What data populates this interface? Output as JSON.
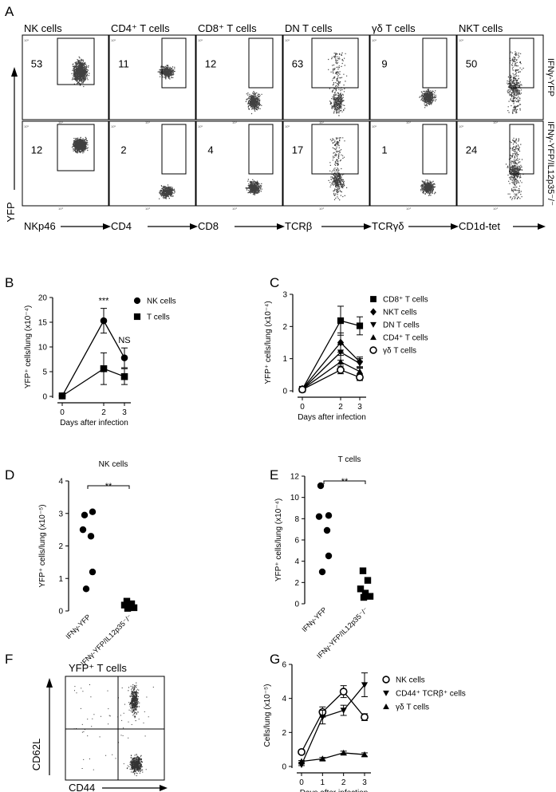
{
  "panel_letters": [
    "A",
    "B",
    "C",
    "D",
    "E",
    "F",
    "G"
  ],
  "panel_a": {
    "y_axis_label": "YFP",
    "row_labels": [
      "IFNγ-YFP",
      "IFNγ-YFP/IL12p35⁻/⁻"
    ],
    "columns": [
      {
        "title": "NK cells",
        "x_label": "NKp46",
        "gate_pct": [
          53,
          12
        ]
      },
      {
        "title": "CD4⁺ T cells",
        "x_label": "CD4",
        "gate_pct": [
          11,
          2
        ]
      },
      {
        "title": "CD8⁺ T cells",
        "x_label": "CD8",
        "gate_pct": [
          12,
          4
        ]
      },
      {
        "title": "DN T cells",
        "x_label": "TCRβ",
        "gate_pct": [
          63,
          17
        ]
      },
      {
        "title": "γδ T cells",
        "x_label": "TCRγδ",
        "gate_pct": [
          9,
          1
        ]
      },
      {
        "title": "NKT cells",
        "x_label": "CD1d-tet",
        "gate_pct": [
          50,
          24
        ]
      }
    ]
  },
  "panel_f": {
    "title": "YFP⁺ T cells",
    "x_label": "CD44",
    "y_label": "CD62L"
  },
  "chart_data": [
    {
      "id": "B",
      "type": "line",
      "xlabel": "Days after infection",
      "ylabel": "YFP⁺ cells/lung (x10⁻⁴)",
      "x": [
        0,
        2,
        3
      ],
      "xlim": [
        0,
        3
      ],
      "ylim": [
        0,
        20
      ],
      "yticks": [
        0,
        5,
        10,
        15,
        20
      ],
      "series": [
        {
          "name": "NK cells",
          "marker": "circle",
          "values": [
            0.1,
            15.3,
            7.8
          ],
          "err": [
            0.1,
            2.5,
            2.0
          ]
        },
        {
          "name": "T cells",
          "marker": "square",
          "values": [
            0.1,
            5.6,
            4.0
          ],
          "err": [
            0.1,
            3.2,
            1.6
          ]
        }
      ],
      "annotations": [
        {
          "x": 2,
          "text": "***"
        },
        {
          "x": 3,
          "text": "NS"
        }
      ]
    },
    {
      "id": "C",
      "type": "line",
      "xlabel": "Days after infection",
      "ylabel": "YFP⁺ cells/lung (x10⁻⁴)",
      "x": [
        0,
        2,
        3
      ],
      "xlim": [
        0,
        3
      ],
      "ylim": [
        0,
        3
      ],
      "yticks": [
        0,
        1,
        2,
        3
      ],
      "series": [
        {
          "name": "CD8⁺ T cells",
          "marker": "square",
          "values": [
            0.05,
            2.18,
            2.02
          ],
          "err": [
            0.02,
            0.45,
            0.28
          ]
        },
        {
          "name": "NKT cells",
          "marker": "diamond",
          "values": [
            0.06,
            1.5,
            0.9
          ],
          "err": [
            0.02,
            0.3,
            0.15
          ]
        },
        {
          "name": "DN T cells",
          "marker": "tri-down",
          "values": [
            0.05,
            1.2,
            0.85
          ],
          "err": [
            0.02,
            0.25,
            0.15
          ]
        },
        {
          "name": "CD4⁺ T cells",
          "marker": "tri-up",
          "values": [
            0.05,
            0.9,
            0.6
          ],
          "err": [
            0.02,
            0.2,
            0.12
          ]
        },
        {
          "name": "γδ T cells",
          "marker": "open-circle",
          "values": [
            0.04,
            0.65,
            0.42
          ],
          "err": [
            0.02,
            0.12,
            0.1
          ]
        }
      ]
    },
    {
      "id": "D",
      "type": "scatter",
      "title": "NK cells",
      "ylabel": "YFP⁺ cells/lung (x10⁻⁵)",
      "categories": [
        "IFNγ-YFP",
        "IFNγ-YFP/IL12p35⁻/⁻"
      ],
      "ylim": [
        0,
        4
      ],
      "yticks": [
        0,
        1,
        2,
        3,
        4
      ],
      "series": [
        {
          "marker": "circle",
          "values": [
            2.95,
            3.05,
            2.5,
            2.3,
            1.2,
            0.68
          ]
        },
        {
          "marker": "square",
          "values": [
            0.3,
            0.22,
            0.18,
            0.12,
            0.1,
            0.08
          ]
        }
      ],
      "annotations": [
        {
          "text": "**"
        }
      ]
    },
    {
      "id": "E",
      "type": "scatter",
      "title": "T cells",
      "ylabel": "YFP⁺ cells/lung (x10⁻⁴)",
      "categories": [
        "IFNγ-YFP",
        "IFNγ-YFP/IL12p35⁻/⁻"
      ],
      "ylim": [
        0,
        12
      ],
      "yticks": [
        0,
        2,
        4,
        6,
        8,
        10,
        12
      ],
      "series": [
        {
          "marker": "circle",
          "values": [
            11.1,
            8.3,
            8.2,
            6.9,
            4.5,
            3.0
          ]
        },
        {
          "marker": "square",
          "values": [
            3.1,
            2.2,
            1.4,
            1.0,
            0.7,
            0.6
          ]
        }
      ],
      "annotations": [
        {
          "text": "**"
        }
      ]
    },
    {
      "id": "G",
      "type": "line",
      "xlabel": "Days after infection",
      "ylabel": "Cells/lung (x10⁻⁵)",
      "x": [
        0,
        1,
        2,
        3
      ],
      "xlim": [
        0,
        3
      ],
      "ylim": [
        0,
        6
      ],
      "yticks": [
        0,
        2,
        4,
        6
      ],
      "series": [
        {
          "name": "NK cells",
          "marker": "open-circle",
          "values": [
            0.85,
            3.2,
            4.4,
            2.9
          ],
          "err": [
            0.12,
            0.3,
            0.35,
            0.2
          ]
        },
        {
          "name": "CD44⁺ TCRβ⁺ cells",
          "marker": "tri-down",
          "values": [
            0.1,
            2.9,
            3.3,
            4.8
          ],
          "err": [
            0.05,
            0.4,
            0.3,
            0.7
          ]
        },
        {
          "name": "γδ T cells",
          "marker": "tri-up",
          "values": [
            0.3,
            0.45,
            0.8,
            0.7
          ],
          "err": [
            0.05,
            0.08,
            0.1,
            0.1
          ]
        }
      ]
    }
  ]
}
